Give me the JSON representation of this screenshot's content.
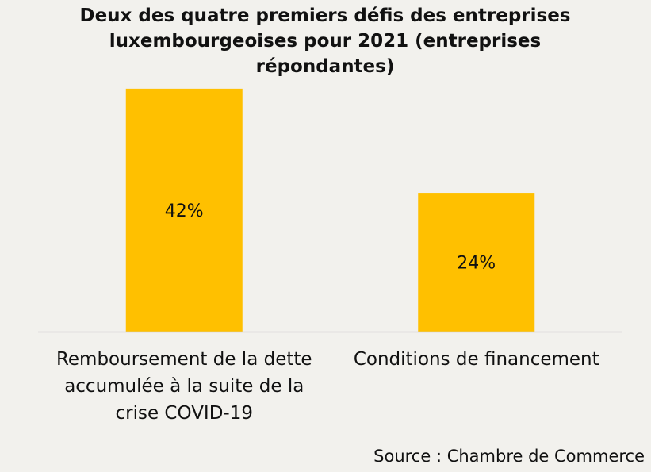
{
  "chart_data": {
    "type": "bar",
    "title": "Deux des quatre premiers défis des entreprises luxembourgeoises pour 2021 (entreprises répondantes)",
    "categories": [
      [
        "Remboursement de la dette",
        "accumulée à la suite de la",
        "crise COVID-19"
      ],
      [
        "Conditions de financement"
      ]
    ],
    "values": [
      42,
      24
    ],
    "data_labels": [
      "42%",
      "24%"
    ],
    "ylim": [
      0,
      45
    ],
    "bar_color": "#ffc000",
    "axis_color": "#d0d0d0",
    "grid": false,
    "xlabel": "",
    "ylabel": ""
  },
  "source_text": "Source : Chambre de Commerce"
}
